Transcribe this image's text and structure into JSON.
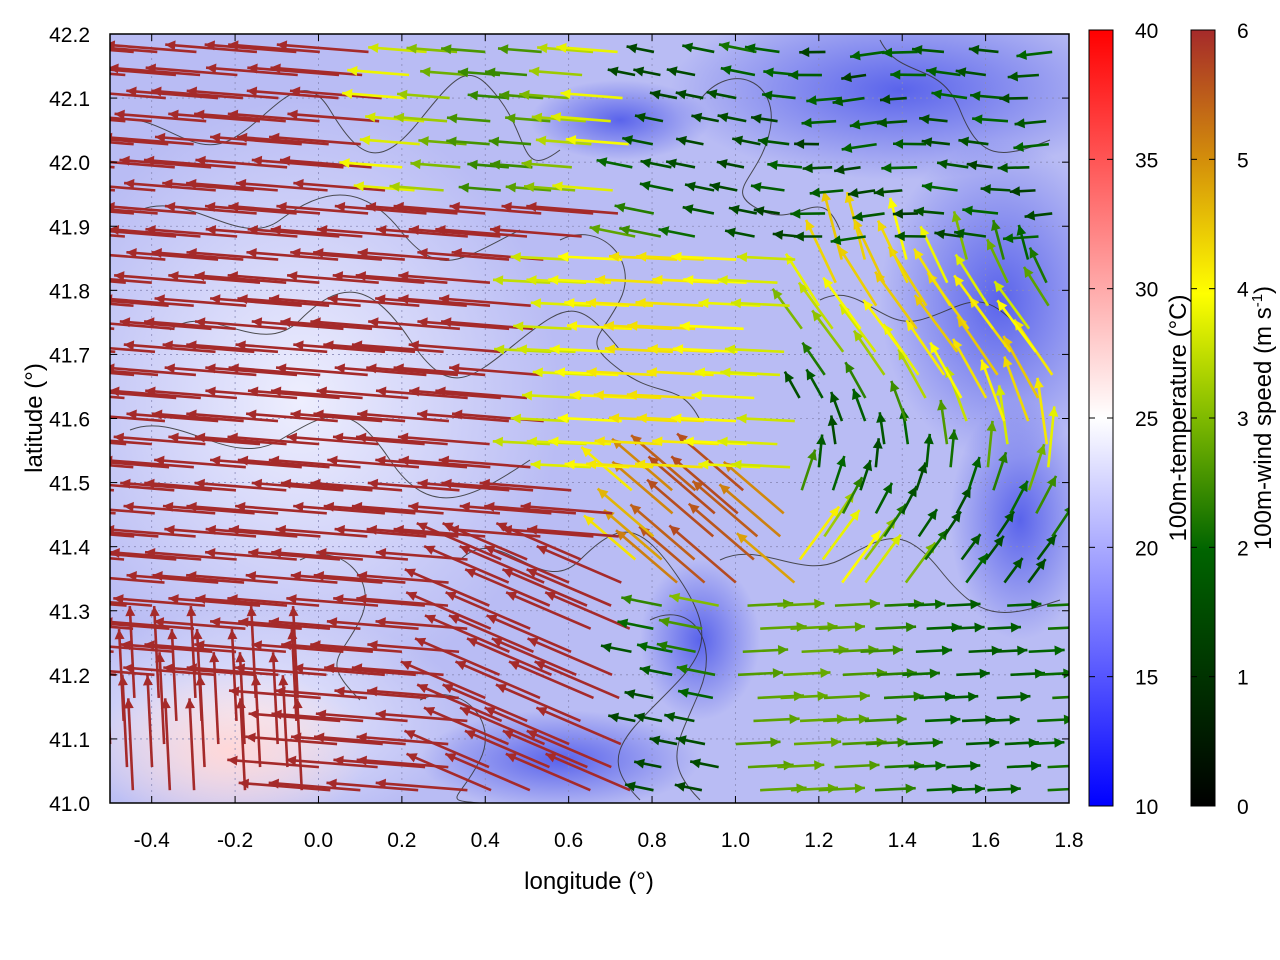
{
  "chart_data": {
    "type": "vector-field",
    "title": "",
    "xlabel": "longitude (°)",
    "ylabel": "latitude (°)",
    "xlim": [
      -0.5,
      1.8
    ],
    "ylim": [
      41.0,
      42.2
    ],
    "xticks": [
      "-0.4",
      "-0.2",
      "0.0",
      "0.2",
      "0.4",
      "0.6",
      "0.8",
      "1.0",
      "1.2",
      "1.4",
      "1.6",
      "1.8"
    ],
    "xtick_values": [
      -0.4,
      -0.2,
      0.0,
      0.2,
      0.4,
      0.6,
      0.8,
      1.0,
      1.2,
      1.4,
      1.6,
      1.8
    ],
    "yticks": [
      "41.0",
      "41.1",
      "41.2",
      "41.3",
      "41.4",
      "41.5",
      "41.6",
      "41.7",
      "41.8",
      "41.9",
      "42.0",
      "42.1",
      "42.2"
    ],
    "ytick_values": [
      41.0,
      41.1,
      41.2,
      41.3,
      41.4,
      41.5,
      41.6,
      41.7,
      41.8,
      41.9,
      42.0,
      42.1,
      42.2
    ],
    "grid": true,
    "background_field": {
      "name": "100m-temperature (°C)",
      "range": [
        10,
        40
      ],
      "ticks": [
        "10",
        "15",
        "20",
        "25",
        "30",
        "35",
        "40"
      ],
      "tick_values": [
        10,
        15,
        20,
        25,
        30,
        35,
        40
      ],
      "colormap": [
        "#0000ff",
        "#ffffff",
        "#ff0000"
      ],
      "typical_value_range": [
        15,
        27
      ]
    },
    "vector_field": {
      "name_prefix": "100m-wind speed (m s",
      "name_sup": "-1",
      "name_suffix": ")",
      "range": [
        0,
        6
      ],
      "ticks": [
        "0",
        "1",
        "2",
        "3",
        "4",
        "5",
        "6"
      ],
      "tick_values": [
        0,
        1,
        2,
        3,
        4,
        5,
        6
      ],
      "colormap": [
        "#000000",
        "#006400",
        "#7fba00",
        "#ffff00",
        "#d4900a",
        "#a52a2a"
      ],
      "dominant_direction": "westward",
      "regions": [
        {
          "area": "west half (lon < 0.8)",
          "speed": 6,
          "direction": "west"
        },
        {
          "area": "central (lon 0.6–1.1, lat 41.5–41.8)",
          "speed": 4,
          "direction": "west"
        },
        {
          "area": "northeast (lon > 1.1, lat > 41.9)",
          "speed": 1.5,
          "direction": "west"
        },
        {
          "area": "southeast (lon > 1.0, lat < 41.3)",
          "speed": 2.5,
          "direction": "east"
        },
        {
          "area": "southwest corner (lon < 0.0, lat < 41.2)",
          "speed": 6,
          "direction": "north"
        }
      ]
    },
    "contours": {
      "color": "#333333",
      "description": "terrain isolines"
    }
  }
}
